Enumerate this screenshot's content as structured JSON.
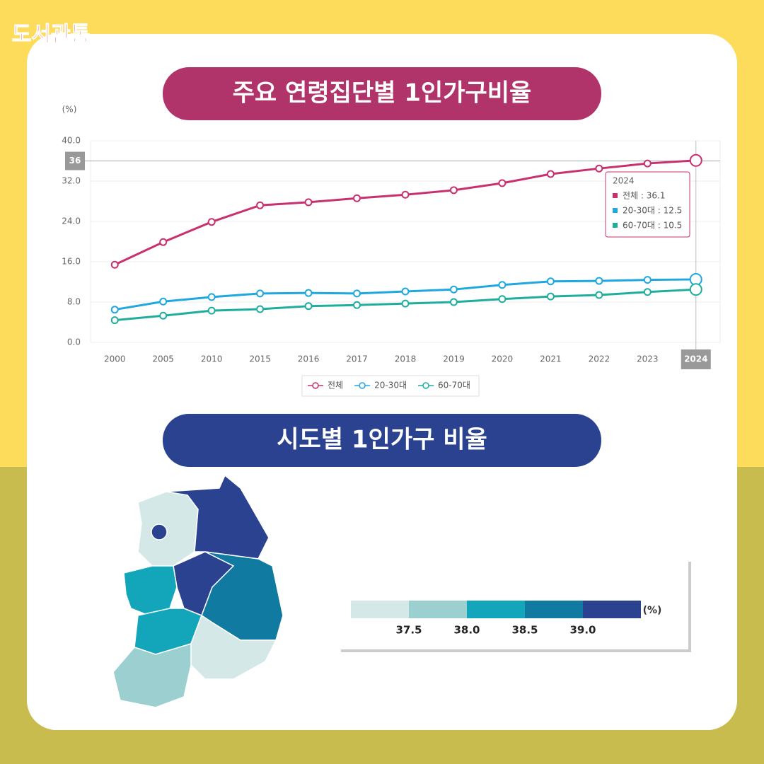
{
  "logo": "도서관통",
  "headings": {
    "chart": "주요 연령집단별 1인가구비율",
    "map": "시도별 1인가구 비율"
  },
  "chart_data": {
    "type": "line",
    "title": "주요 연령집단별 1인가구비율",
    "y_label": "(%)",
    "categories": [
      "2000",
      "2005",
      "2010",
      "2015",
      "2016",
      "2017",
      "2018",
      "2019",
      "2020",
      "2021",
      "2022",
      "2023",
      "2024"
    ],
    "series": [
      {
        "name": "전체",
        "color": "#c8306f",
        "values": [
          15.4,
          19.9,
          23.9,
          27.2,
          27.8,
          28.6,
          29.3,
          30.2,
          31.6,
          33.4,
          34.5,
          35.5,
          36.1
        ]
      },
      {
        "name": "20-30대",
        "color": "#1fa8e0",
        "values": [
          6.5,
          8.1,
          9.0,
          9.7,
          9.8,
          9.7,
          10.1,
          10.5,
          11.4,
          12.1,
          12.2,
          12.4,
          12.5
        ]
      },
      {
        "name": "60-70대",
        "color": "#1fae9d",
        "values": [
          4.4,
          5.3,
          6.3,
          6.6,
          7.2,
          7.4,
          7.7,
          8.0,
          8.6,
          9.1,
          9.4,
          10.0,
          10.5
        ]
      }
    ],
    "ylim": [
      0,
      40
    ],
    "yticks": [
      {
        "value": 0,
        "label": "0.0"
      },
      {
        "value": 8,
        "label": "8.0"
      },
      {
        "value": 16,
        "label": "16.0"
      },
      {
        "value": 24,
        "label": "24.0"
      },
      {
        "value": 32,
        "label": "32.0"
      },
      {
        "value": 40,
        "label": "40.0"
      }
    ],
    "reference_line": 36,
    "grid": true,
    "tooltip": {
      "title": "2024",
      "items": [
        "전체 : 36.1",
        "20-30대 : 12.5",
        "60-70대 : 10.5"
      ]
    }
  },
  "map_legend": {
    "colors": [
      "#d4e8e8",
      "#9ccfd0",
      "#13a6bb",
      "#107aa0",
      "#2b4290"
    ],
    "ticks": [
      37.5,
      {
        "value": 38,
        "label": "38.0"
      },
      38.5,
      {
        "value": 39,
        "label": "39.0"
      }
    ],
    "unit": "(%)"
  }
}
